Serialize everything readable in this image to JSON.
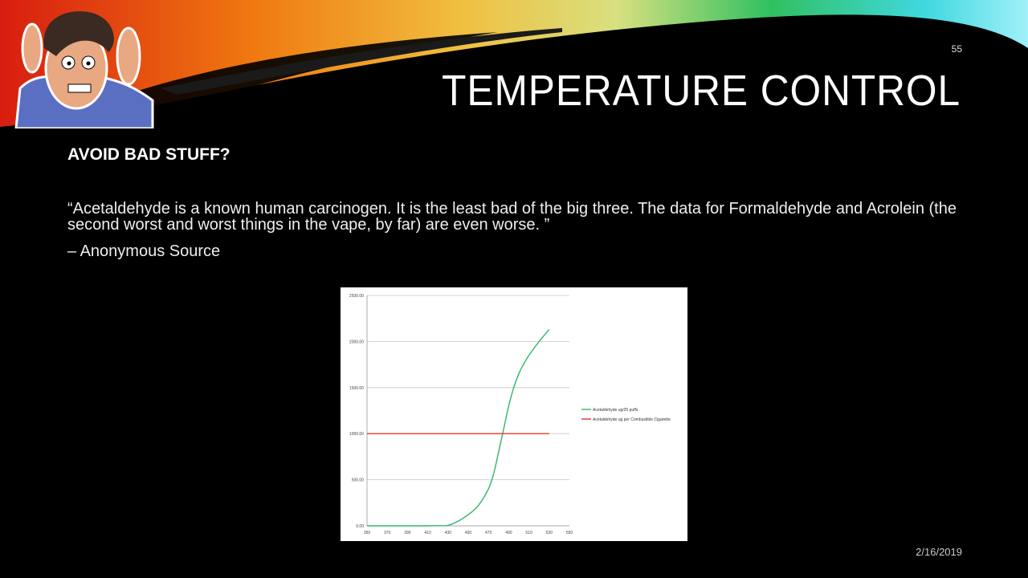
{
  "slide": {
    "number": "55",
    "title": "TEMPERATURE CONTROL",
    "subheading": "AVOID BAD STUFF?",
    "quote": "“Acetaldehyde is a known human carcinogen. It is the least bad of the big three. The data for Formaldehyde and Acrolein (the second worst and worst things in the vape, by far) are even worse. ”",
    "attribution": "– Anonymous Source",
    "date": "2/16/2019"
  },
  "chart_data": {
    "type": "line",
    "title": "",
    "xlabel": "",
    "ylabel": "",
    "xlim": [
      350,
      550
    ],
    "ylim": [
      0,
      2500
    ],
    "x_ticks": [
      "350",
      "370",
      "390",
      "410",
      "430",
      "450",
      "470",
      "490",
      "510",
      "530",
      "550"
    ],
    "y_ticks": [
      "0.00",
      "500.00",
      "1000.00",
      "1500.00",
      "2000.00",
      "2500.00"
    ],
    "grid": "horizontal",
    "legend": "right",
    "series": [
      {
        "name": "Acetaldehyde ug/25 puffs",
        "color": "#2fb56a",
        "x": [
          350,
          370,
          390,
          410,
          420,
          430,
          440,
          450,
          460,
          470,
          475,
          480,
          485,
          490,
          495,
          500,
          505,
          510,
          520,
          530
        ],
        "y": [
          0,
          0,
          0,
          0,
          2,
          5,
          50,
          120,
          220,
          400,
          560,
          800,
          1050,
          1300,
          1500,
          1650,
          1760,
          1850,
          2000,
          2130
        ]
      },
      {
        "name": "Acetaldehyde ug per Combustible Cigarette",
        "color": "#e8332f",
        "x": [
          350,
          530
        ],
        "y": [
          1000,
          1000
        ]
      }
    ]
  }
}
